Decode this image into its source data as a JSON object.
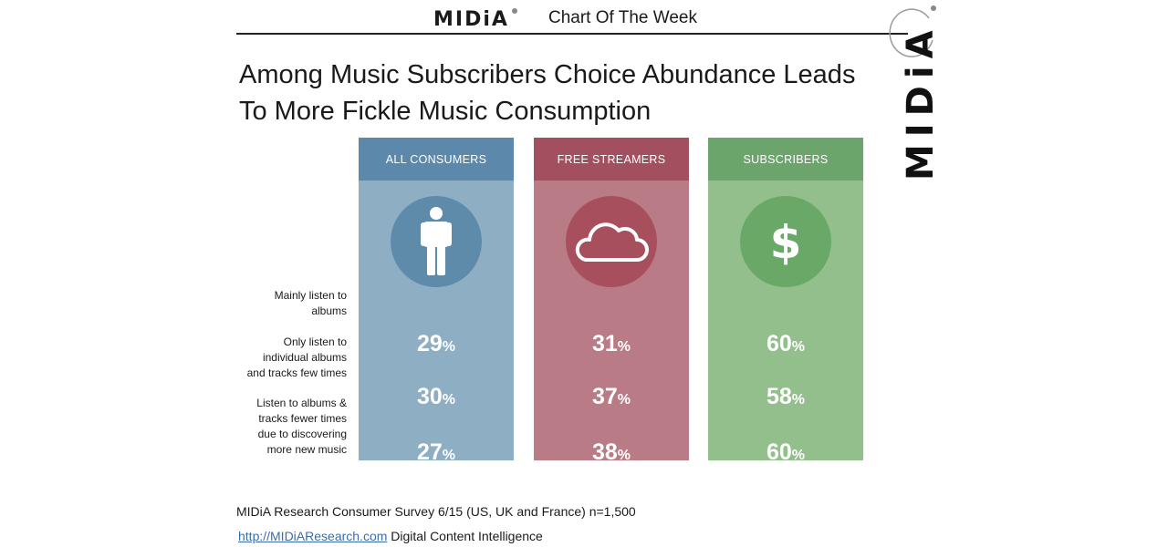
{
  "header": {
    "brand": "MIDiA",
    "title": "Chart Of The Week"
  },
  "side_logo": "MIDiA",
  "chart_data": {
    "type": "table",
    "title_lines": [
      "Among Music Subscribers Choice Abundance Leads",
      "To More Fickle Music Consumption"
    ],
    "columns": [
      {
        "label": "ALL CONSUMERS",
        "icon": "person-icon",
        "header_color": "#5b88ab",
        "body_color": "#8eaec4",
        "circle_color": "#5f8bab",
        "values": [
          "29",
          "30",
          "27"
        ]
      },
      {
        "label": "FREE STREAMERS",
        "icon": "cloud-icon",
        "header_color": "#a24f5f",
        "body_color": "#b97b85",
        "circle_color": "#a84f5e",
        "values": [
          "31",
          "37",
          "38"
        ]
      },
      {
        "label": "SUBSCRIBERS",
        "icon": "dollar-icon",
        "header_color": "#6ba56b",
        "body_color": "#93bf8d",
        "circle_color": "#6aa868",
        "values": [
          "60",
          "58",
          "60"
        ]
      }
    ],
    "rows": [
      {
        "label_lines": [
          "Mainly listen to",
          "albums"
        ]
      },
      {
        "label_lines": [
          "Only listen to",
          "individual albums",
          "and tracks few times"
        ]
      },
      {
        "label_lines": [
          "Listen to albums &",
          "tracks fewer times",
          "due to discovering",
          "more new music"
        ]
      }
    ],
    "unit": "%"
  },
  "source": "MIDiA Research Consumer Survey 6/15 (US, UK and France) n=1,500",
  "footer": {
    "link_text": "http://MIDiAResearch.com",
    "tagline": " Digital Content Intelligence"
  }
}
